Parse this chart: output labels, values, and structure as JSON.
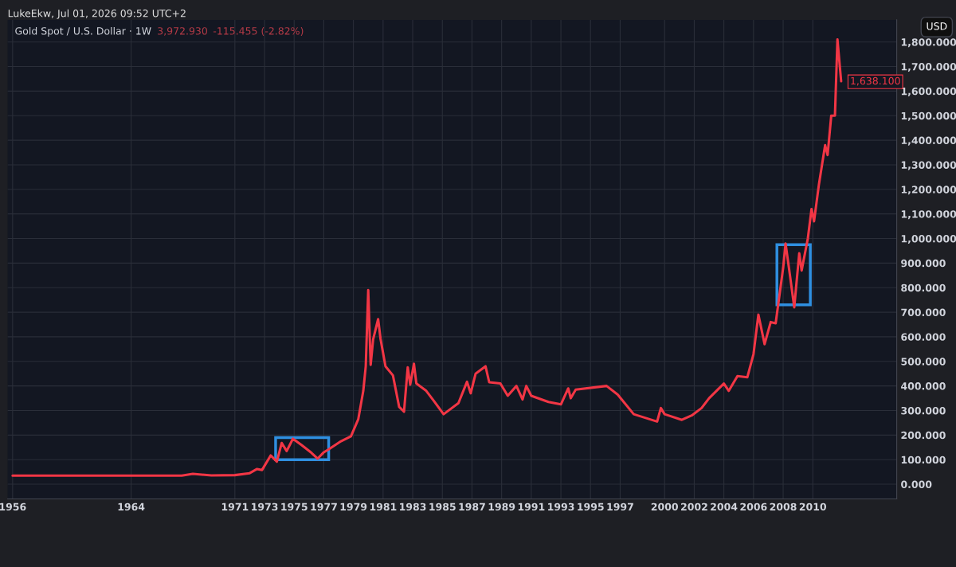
{
  "chart_data": {
    "type": "line",
    "title": "Gold Spot / U.S. Dollar · 1W",
    "subtitle": "LukeEkw, Jul 01, 2026 09:52 UTC+2",
    "annotations": [
      "3,972.930",
      "-115.455 (-2.82%)",
      "USD",
      {
        "text": "1,638.100",
        "x": "2011-12",
        "y": 1638.1
      }
    ],
    "x": [
      "1956-01",
      "1960-01",
      "1964-01",
      "1967-06",
      "1968-03",
      "1969-06",
      "1971-01",
      "1972-01",
      "1972-07",
      "1972-11",
      "1973-06",
      "1973-11",
      "1974-03",
      "1974-07",
      "1974-12",
      "1975-07",
      "1976-03",
      "1976-08",
      "1977-01",
      "1977-05",
      "1978-03",
      "1978-11",
      "1979-05",
      "1979-09",
      "1979-11",
      "1980-01",
      "1980-03",
      "1980-05",
      "1980-09",
      "1980-11",
      "1981-03",
      "1981-09",
      "1982-02",
      "1982-06",
      "1982-09",
      "1982-11",
      "1983-02",
      "1983-04",
      "1983-12",
      "1984-06",
      "1985-02",
      "1986-02",
      "1986-09",
      "1986-12",
      "1987-04",
      "1987-12",
      "1988-03",
      "1988-12",
      "1989-06",
      "1990-01",
      "1990-06",
      "1990-09",
      "1991-01",
      "1992-03",
      "1993-01",
      "1993-07",
      "1993-09",
      "1994-01",
      "1996-02",
      "1996-11",
      "1997-12",
      "1999-07",
      "1999-10",
      "2000-01",
      "2001-03",
      "2001-11",
      "2002-07",
      "2003-01",
      "2004-01",
      "2004-05",
      "2004-12",
      "2005-08",
      "2006-01",
      "2006-05",
      "2006-10",
      "2007-03",
      "2007-07",
      "2008-01",
      "2008-03",
      "2008-06",
      "2008-10",
      "2009-02",
      "2009-04",
      "2009-09",
      "2009-12",
      "2010-02",
      "2010-06",
      "2010-11",
      "2011-01",
      "2011-04",
      "2011-07",
      "2011-09",
      "2011-12"
    ],
    "series": [
      {
        "color": "#f23645",
        "values": [
          35,
          35,
          35,
          35,
          42,
          36,
          37,
          45,
          62,
          58,
          117,
          92,
          168,
          135,
          185,
          160,
          128,
          104,
          130,
          142,
          175,
          195,
          265,
          380,
          480,
          790,
          486,
          590,
          672,
          590,
          480,
          443,
          315,
          295,
          476,
          405,
          490,
          410,
          380,
          340,
          285,
          330,
          417,
          370,
          450,
          480,
          415,
          410,
          360,
          400,
          345,
          400,
          360,
          335,
          325,
          390,
          350,
          385,
          400,
          365,
          285,
          255,
          310,
          285,
          262,
          280,
          310,
          350,
          410,
          380,
          440,
          435,
          530,
          690,
          570,
          660,
          655,
          880,
          980,
          870,
          720,
          940,
          870,
          1000,
          1120,
          1070,
          1220,
          1380,
          1340,
          1500,
          1500,
          1810,
          1640
        ]
      }
    ],
    "xlim": [
      "1955-09",
      "2015-09"
    ],
    "xticks": [
      {
        "value": "1956-01",
        "label": "1956"
      },
      {
        "value": "1964-01",
        "label": "1964"
      },
      {
        "value": "1971-01",
        "label": "1971"
      },
      {
        "value": "1973-01",
        "label": "1973"
      },
      {
        "value": "1975-01",
        "label": "1975"
      },
      {
        "value": "1977-01",
        "label": "1977"
      },
      {
        "value": "1979-01",
        "label": "1979"
      },
      {
        "value": "1981-01",
        "label": "1981"
      },
      {
        "value": "1983-01",
        "label": "1983"
      },
      {
        "value": "1985-01",
        "label": "1985"
      },
      {
        "value": "1987-01",
        "label": "1987"
      },
      {
        "value": "1989-01",
        "label": "1989"
      },
      {
        "value": "1991-01",
        "label": "1991"
      },
      {
        "value": "1993-01",
        "label": "1993"
      },
      {
        "value": "1995-01",
        "label": "1995"
      },
      {
        "value": "1997-01",
        "label": "1997"
      },
      {
        "value": "2000-01",
        "label": "2000"
      },
      {
        "value": "2002-01",
        "label": "2002"
      },
      {
        "value": "2004-01",
        "label": "2004"
      },
      {
        "value": "2006-01",
        "label": "2006"
      },
      {
        "value": "2008-01",
        "label": "2008"
      },
      {
        "value": "2010-01",
        "label": "2010"
      }
    ],
    "ylim": [
      -60,
      1890
    ],
    "yticks": [
      {
        "value": 0,
        "label": "0.000"
      },
      {
        "value": 100,
        "label": "100.000"
      },
      {
        "value": 200,
        "label": "200.000"
      },
      {
        "value": 300,
        "label": "300.000"
      },
      {
        "value": 400,
        "label": "400.000"
      },
      {
        "value": 500,
        "label": "500.000"
      },
      {
        "value": 600,
        "label": "600.000"
      },
      {
        "value": 700,
        "label": "700.000"
      },
      {
        "value": 800,
        "label": "800.000"
      },
      {
        "value": 900,
        "label": "900.000"
      },
      {
        "value": 1000,
        "label": "1,000.000"
      },
      {
        "value": 1100,
        "label": "1,100.000"
      },
      {
        "value": 1200,
        "label": "1,200.000"
      },
      {
        "value": 1300,
        "label": "1,300.000"
      },
      {
        "value": 1400,
        "label": "1,400.000"
      },
      {
        "value": 1500,
        "label": "1,500.000"
      },
      {
        "value": 1600,
        "label": "1,600.000"
      },
      {
        "value": 1700,
        "label": "1,700.000"
      },
      {
        "value": 1800,
        "label": "1,800.000"
      }
    ],
    "grid": true,
    "legend": false,
    "marker": "none",
    "line_style": "solid"
  }
}
